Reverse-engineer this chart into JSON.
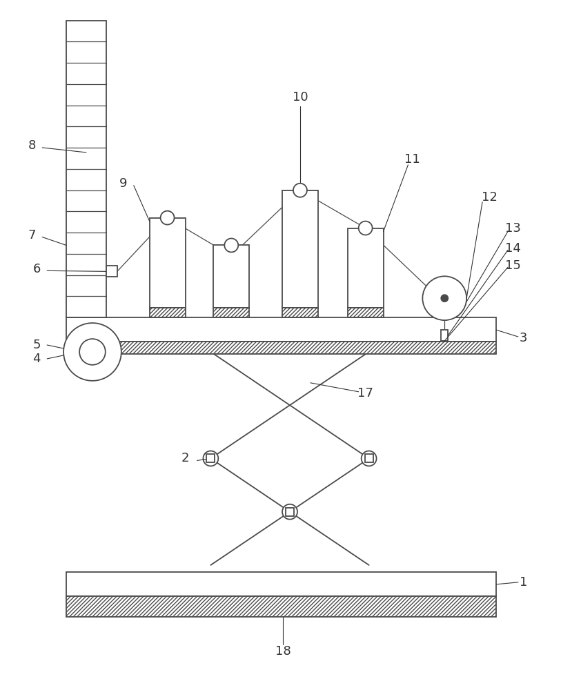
{
  "bg_color": "#ffffff",
  "line_color": "#4a4a4a",
  "label_color": "#333333",
  "fig_width": 8.42,
  "fig_height": 10.0
}
